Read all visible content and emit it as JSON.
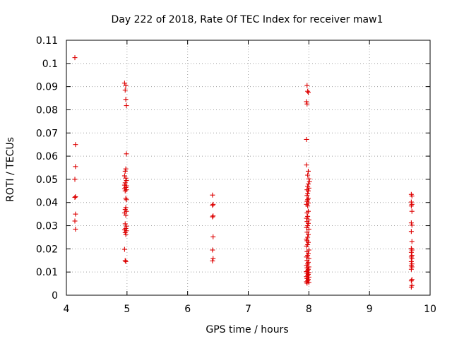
{
  "chart_data": {
    "type": "scatter",
    "title": "Day 222 of 2018, Rate Of TEC Index for receiver maw1",
    "xlabel": "GPS time / hours",
    "ylabel": "ROTI / TECUs",
    "xlim": [
      4,
      10
    ],
    "ylim": [
      0,
      0.11
    ],
    "grid": true,
    "marker": "+",
    "marker_color": "#dd0000",
    "x_ticks": [
      4,
      5,
      6,
      7,
      8,
      9,
      10
    ],
    "x_tick_labels": [
      "4",
      "5",
      "6",
      "7",
      "8",
      "9",
      "10"
    ],
    "y_ticks": [
      0,
      0.01,
      0.02,
      0.03,
      0.04,
      0.05,
      0.06,
      0.07,
      0.08,
      0.09,
      0.1,
      0.11
    ],
    "y_tick_labels": [
      "0",
      "0.01",
      "0.02",
      "0.03",
      "0.04",
      "0.05",
      "0.06",
      "0.07",
      "0.08",
      "0.09",
      "0.1",
      "0.11"
    ],
    "series": [
      {
        "name": "maw1",
        "points": [
          [
            4.14,
            0.1025
          ],
          [
            4.15,
            0.065
          ],
          [
            4.15,
            0.0555
          ],
          [
            4.14,
            0.05
          ],
          [
            4.15,
            0.0425
          ],
          [
            4.14,
            0.0422
          ],
          [
            4.15,
            0.035
          ],
          [
            4.14,
            0.032
          ],
          [
            4.15,
            0.0285
          ],
          [
            4.96,
            0.0915
          ],
          [
            4.98,
            0.0905
          ],
          [
            4.97,
            0.0885
          ],
          [
            4.98,
            0.0845
          ],
          [
            4.99,
            0.0818
          ],
          [
            4.99,
            0.061
          ],
          [
            4.98,
            0.0545
          ],
          [
            4.97,
            0.0535
          ],
          [
            4.96,
            0.0515
          ],
          [
            4.98,
            0.0505
          ],
          [
            4.99,
            0.0495
          ],
          [
            4.97,
            0.0485
          ],
          [
            4.96,
            0.0475
          ],
          [
            4.99,
            0.0472
          ],
          [
            4.98,
            0.0465
          ],
          [
            4.96,
            0.046
          ],
          [
            4.99,
            0.0455
          ],
          [
            4.97,
            0.045
          ],
          [
            4.98,
            0.0418
          ],
          [
            4.99,
            0.0412
          ],
          [
            4.98,
            0.0378
          ],
          [
            4.97,
            0.037
          ],
          [
            4.99,
            0.0362
          ],
          [
            4.96,
            0.0355
          ],
          [
            4.98,
            0.0345
          ],
          [
            4.97,
            0.0308
          ],
          [
            4.99,
            0.0298
          ],
          [
            4.98,
            0.0288
          ],
          [
            4.96,
            0.0282
          ],
          [
            4.99,
            0.0278
          ],
          [
            4.97,
            0.027
          ],
          [
            4.98,
            0.0262
          ],
          [
            4.96,
            0.0198
          ],
          [
            4.97,
            0.015
          ],
          [
            4.98,
            0.0145
          ],
          [
            6.41,
            0.0432
          ],
          [
            6.42,
            0.0392
          ],
          [
            6.41,
            0.0388
          ],
          [
            6.42,
            0.0342
          ],
          [
            6.41,
            0.0338
          ],
          [
            6.42,
            0.0252
          ],
          [
            6.41,
            0.0195
          ],
          [
            6.42,
            0.0158
          ],
          [
            6.41,
            0.0148
          ],
          [
            7.97,
            0.0905
          ],
          [
            7.98,
            0.088
          ],
          [
            7.99,
            0.0875
          ],
          [
            7.96,
            0.0835
          ],
          [
            7.97,
            0.0825
          ],
          [
            7.96,
            0.0672
          ],
          [
            7.96,
            0.0562
          ],
          [
            7.99,
            0.0535
          ],
          [
            7.98,
            0.0518
          ],
          [
            8.0,
            0.0502
          ],
          [
            8.01,
            0.049
          ],
          [
            7.99,
            0.048
          ],
          [
            7.98,
            0.047
          ],
          [
            8.0,
            0.0462
          ],
          [
            7.97,
            0.0455
          ],
          [
            7.99,
            0.045
          ],
          [
            7.98,
            0.0438
          ],
          [
            7.97,
            0.043
          ],
          [
            7.99,
            0.0418
          ],
          [
            7.98,
            0.0412
          ],
          [
            7.97,
            0.0405
          ],
          [
            7.99,
            0.0398
          ],
          [
            7.96,
            0.0392
          ],
          [
            7.98,
            0.0385
          ],
          [
            7.99,
            0.0362
          ],
          [
            7.97,
            0.0355
          ],
          [
            7.98,
            0.034
          ],
          [
            7.96,
            0.0332
          ],
          [
            8.0,
            0.0325
          ],
          [
            7.97,
            0.0318
          ],
          [
            7.99,
            0.031
          ],
          [
            7.98,
            0.03
          ],
          [
            7.96,
            0.0292
          ],
          [
            8.0,
            0.0285
          ],
          [
            7.97,
            0.0272
          ],
          [
            7.99,
            0.0262
          ],
          [
            7.98,
            0.025
          ],
          [
            7.96,
            0.0242
          ],
          [
            7.97,
            0.0235
          ],
          [
            7.99,
            0.0228
          ],
          [
            7.98,
            0.0218
          ],
          [
            7.96,
            0.0212
          ],
          [
            8.0,
            0.0195
          ],
          [
            7.97,
            0.0188
          ],
          [
            7.99,
            0.018
          ],
          [
            7.98,
            0.0172
          ],
          [
            7.96,
            0.0165
          ],
          [
            8.0,
            0.0158
          ],
          [
            7.97,
            0.015
          ],
          [
            7.99,
            0.0142
          ],
          [
            7.98,
            0.0135
          ],
          [
            7.96,
            0.0128
          ],
          [
            8.0,
            0.0122
          ],
          [
            7.97,
            0.0118
          ],
          [
            7.99,
            0.0112
          ],
          [
            7.98,
            0.0108
          ],
          [
            7.96,
            0.0102
          ],
          [
            8.0,
            0.0098
          ],
          [
            7.97,
            0.0095
          ],
          [
            7.99,
            0.009
          ],
          [
            7.98,
            0.0085
          ],
          [
            7.96,
            0.008
          ],
          [
            8.0,
            0.0078
          ],
          [
            7.97,
            0.0072
          ],
          [
            7.99,
            0.0068
          ],
          [
            7.98,
            0.0062
          ],
          [
            7.96,
            0.0058
          ],
          [
            8.0,
            0.0055
          ],
          [
            7.97,
            0.0052
          ],
          [
            9.69,
            0.0435
          ],
          [
            9.7,
            0.0428
          ],
          [
            9.69,
            0.0402
          ],
          [
            9.7,
            0.0392
          ],
          [
            9.69,
            0.0385
          ],
          [
            9.7,
            0.0362
          ],
          [
            9.69,
            0.0312
          ],
          [
            9.7,
            0.0302
          ],
          [
            9.69,
            0.0275
          ],
          [
            9.7,
            0.0232
          ],
          [
            9.69,
            0.0202
          ],
          [
            9.7,
            0.0195
          ],
          [
            9.69,
            0.0185
          ],
          [
            9.7,
            0.0172
          ],
          [
            9.69,
            0.0165
          ],
          [
            9.7,
            0.0158
          ],
          [
            9.69,
            0.0145
          ],
          [
            9.7,
            0.0135
          ],
          [
            9.69,
            0.0128
          ],
          [
            9.7,
            0.0122
          ],
          [
            9.69,
            0.0112
          ],
          [
            9.7,
            0.0068
          ],
          [
            9.69,
            0.0062
          ],
          [
            9.7,
            0.0042
          ],
          [
            9.69,
            0.0035
          ]
        ]
      }
    ]
  }
}
